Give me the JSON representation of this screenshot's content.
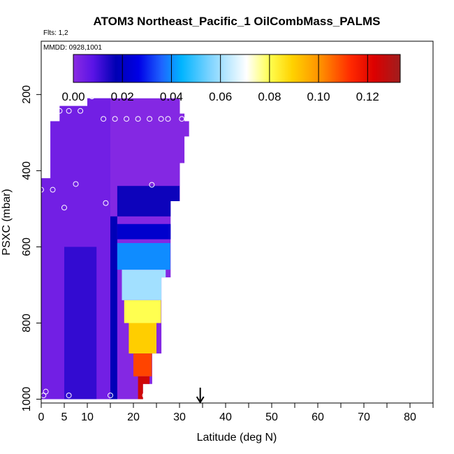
{
  "chart_data": {
    "type": "heatmap",
    "title": "ATOM3 Northeast_Pacific_1 OilCombMass_PALMS",
    "flights_label": "Flts: 1,2",
    "date_label": "MMDD: 0928,1001",
    "xlabel": "Latitude (deg N)",
    "ylabel": "PSXC (mbar)",
    "xlim": [
      0,
      85
    ],
    "ylim": [
      1010,
      60
    ],
    "y_reversed": true,
    "xticks": [
      0,
      5,
      10,
      20,
      30,
      40,
      50,
      60,
      70,
      80
    ],
    "xminor": [
      15,
      25,
      35,
      45,
      55,
      65,
      75,
      85
    ],
    "yticks": [
      200,
      400,
      600,
      800,
      1000
    ],
    "colorbar": {
      "min": 0,
      "max": 0.1333,
      "ticks": [
        0.0,
        0.02,
        0.04,
        0.06,
        0.08,
        0.1,
        0.12
      ],
      "tick_labels": [
        "0.00",
        "0.02",
        "0.04",
        "0.06",
        "0.08",
        "0.10",
        "0.12"
      ],
      "colors": [
        "#8a2be2",
        "#5a14e6",
        "#0000b4",
        "#0000e6",
        "#1e64ff",
        "#00b4ff",
        "#7fd4ff",
        "#ffffff",
        "#ffff50",
        "#ffd200",
        "#ff8c00",
        "#ff2800",
        "#dc0000",
        "#a01e1e"
      ],
      "color_stops": [
        0,
        0.06,
        0.13,
        0.2,
        0.27,
        0.33,
        0.42,
        0.53,
        0.6,
        0.67,
        0.76,
        0.85,
        0.92,
        1.0
      ],
      "divider_values": [
        0.02,
        0.04,
        0.06,
        0.08,
        0.1,
        0.12
      ]
    },
    "curtain": {
      "lat_bins": [
        {
          "lat": [
            0,
            2
          ],
          "p_top": 420,
          "p_bot": 1000
        },
        {
          "lat": [
            2,
            4
          ],
          "p_top": 270,
          "p_bot": 1000
        },
        {
          "lat": [
            4,
            6
          ],
          "p_top": 230,
          "p_bot": 1000
        },
        {
          "lat": [
            6,
            8
          ],
          "p_top": 230,
          "p_bot": 1000
        },
        {
          "lat": [
            8,
            10
          ],
          "p_top": 230,
          "p_bot": 1000
        },
        {
          "lat": [
            10,
            12
          ],
          "p_top": 210,
          "p_bot": 1000
        },
        {
          "lat": [
            12,
            14
          ],
          "p_top": 210,
          "p_bot": 1000
        },
        {
          "lat": [
            14,
            16
          ],
          "p_top": 210,
          "p_bot": 1000
        },
        {
          "lat": [
            16,
            18
          ],
          "p_top": 210,
          "p_bot": 1000
        },
        {
          "lat": [
            18,
            20
          ],
          "p_top": 210,
          "p_bot": 1000
        },
        {
          "lat": [
            20,
            22
          ],
          "p_top": 210,
          "p_bot": 1000
        },
        {
          "lat": [
            22,
            24
          ],
          "p_top": 210,
          "p_bot": 960
        },
        {
          "lat": [
            24,
            26
          ],
          "p_top": 210,
          "p_bot": 880
        },
        {
          "lat": [
            26,
            28
          ],
          "p_top": 210,
          "p_bot": 680
        },
        {
          "lat": [
            28,
            30
          ],
          "p_top": 210,
          "p_bot": 480
        },
        {
          "lat": [
            30,
            31
          ],
          "p_top": 250,
          "p_bot": 380
        },
        {
          "lat": [
            31,
            32
          ],
          "p_top": 270,
          "p_bot": 310
        }
      ],
      "features": [
        {
          "lat": [
            0,
            15
          ],
          "p": [
            200,
            1000
          ],
          "value": 0.004
        },
        {
          "lat": [
            5,
            12
          ],
          "p": [
            600,
            1000
          ],
          "value": 0.012
        },
        {
          "lat": [
            15,
            16.5
          ],
          "p": [
            520,
            1000
          ],
          "value": 0.018
        },
        {
          "lat": [
            16.5,
            30
          ],
          "p": [
            440,
            520
          ],
          "value": 0.016
        },
        {
          "lat": [
            16.5,
            29
          ],
          "p": [
            540,
            580
          ],
          "value": 0.022
        },
        {
          "lat": [
            16.5,
            28
          ],
          "p": [
            590,
            660
          ],
          "value": 0.04
        },
        {
          "lat": [
            17.5,
            27
          ],
          "p": [
            660,
            740
          ],
          "value": 0.06
        },
        {
          "lat": [
            18,
            26
          ],
          "p": [
            740,
            800
          ],
          "value": 0.08
        },
        {
          "lat": [
            19,
            25
          ],
          "p": [
            800,
            880
          ],
          "value": 0.09
        },
        {
          "lat": [
            20,
            24
          ],
          "p": [
            880,
            940
          ],
          "value": 0.11
        },
        {
          "lat": [
            21,
            23.5
          ],
          "p": [
            940,
            1000
          ],
          "value": 0.125
        }
      ]
    },
    "points": [
      {
        "lat": 2.5,
        "p": 218
      },
      {
        "lat": 4,
        "p": 243
      },
      {
        "lat": 6,
        "p": 243
      },
      {
        "lat": 8.5,
        "p": 243
      },
      {
        "lat": 11,
        "p": 205
      },
      {
        "lat": 13.5,
        "p": 264
      },
      {
        "lat": 16,
        "p": 264
      },
      {
        "lat": 19,
        "p": 200
      },
      {
        "lat": 18.5,
        "p": 264
      },
      {
        "lat": 21,
        "p": 264
      },
      {
        "lat": 23.5,
        "p": 264
      },
      {
        "lat": 26,
        "p": 264
      },
      {
        "lat": 26.5,
        "p": 190
      },
      {
        "lat": 29.5,
        "p": 200
      },
      {
        "lat": 27.5,
        "p": 264
      },
      {
        "lat": 30.5,
        "p": 264
      },
      {
        "lat": 0,
        "p": 450
      },
      {
        "lat": 2.5,
        "p": 450
      },
      {
        "lat": 7.5,
        "p": 435
      },
      {
        "lat": 24,
        "p": 437
      },
      {
        "lat": 5,
        "p": 497
      },
      {
        "lat": 14,
        "p": 485
      },
      {
        "lat": 0.5,
        "p": 990
      },
      {
        "lat": 1,
        "p": 980
      },
      {
        "lat": 6,
        "p": 990
      },
      {
        "lat": 15,
        "p": 990
      },
      {
        "lat": 22.5,
        "p": 990
      }
    ],
    "arrow_lat": 34.5
  }
}
